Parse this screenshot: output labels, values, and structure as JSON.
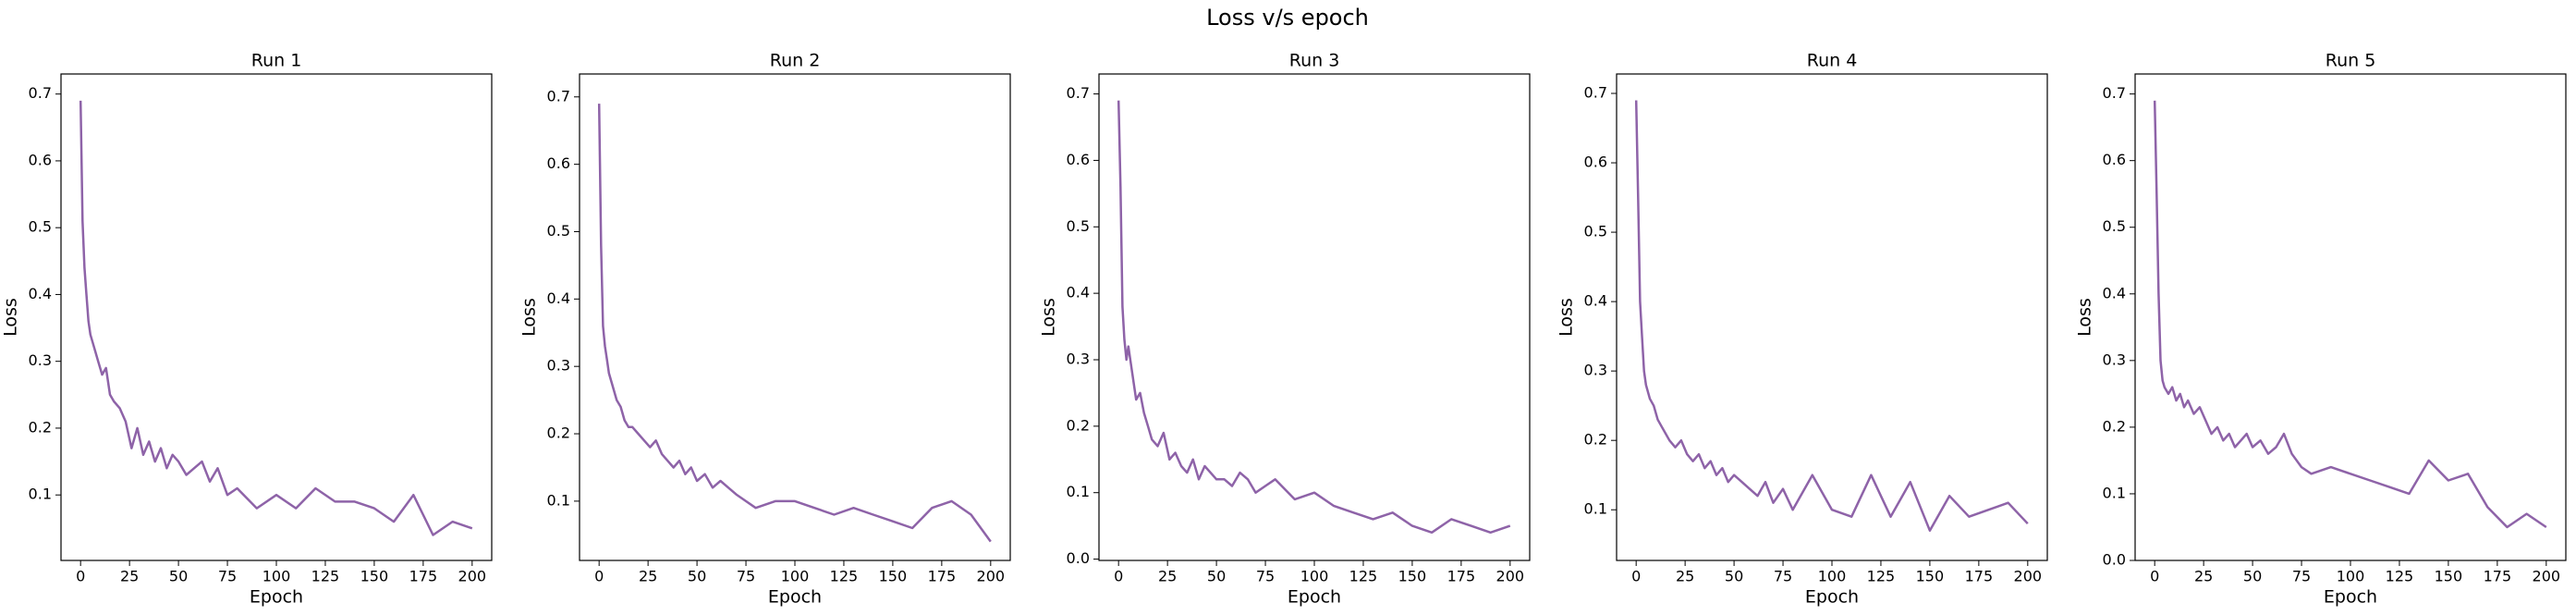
{
  "title": "Loss v/s epoch",
  "chart_data": [
    {
      "type": "line",
      "title": "Run 1",
      "x_label": "Epoch",
      "y_label": "Loss",
      "color": "#8e63a8",
      "x": [
        0,
        1,
        2,
        3,
        4,
        5,
        7,
        9,
        11,
        13,
        15,
        17,
        20,
        23,
        26,
        29,
        32,
        35,
        38,
        41,
        44,
        47,
        50,
        54,
        58,
        62,
        66,
        70,
        75,
        80,
        90,
        100,
        110,
        120,
        130,
        140,
        150,
        160,
        170,
        180,
        190,
        200
      ],
      "values": [
        0.69,
        0.51,
        0.44,
        0.4,
        0.36,
        0.34,
        0.32,
        0.3,
        0.28,
        0.29,
        0.25,
        0.24,
        0.23,
        0.21,
        0.17,
        0.2,
        0.16,
        0.18,
        0.15,
        0.17,
        0.14,
        0.16,
        0.15,
        0.13,
        0.14,
        0.15,
        0.12,
        0.14,
        0.1,
        0.11,
        0.08,
        0.1,
        0.08,
        0.11,
        0.09,
        0.09,
        0.08,
        0.06,
        0.1,
        0.04,
        0.06,
        0.05
      ],
      "xlim": [
        -10,
        210
      ],
      "xticks": [
        0,
        25,
        50,
        75,
        100,
        125,
        150,
        175,
        200
      ],
      "ylim": [
        0.002,
        0.73
      ],
      "yticks": [
        0.1,
        0.2,
        0.3,
        0.4,
        0.5,
        0.6,
        0.7
      ]
    },
    {
      "type": "line",
      "title": "Run 2",
      "x_label": "Epoch",
      "y_label": "Loss",
      "color": "#8e63a8",
      "x": [
        0,
        1,
        2,
        3,
        4,
        5,
        7,
        9,
        11,
        13,
        15,
        17,
        20,
        23,
        26,
        29,
        32,
        35,
        38,
        41,
        44,
        47,
        50,
        54,
        58,
        62,
        66,
        70,
        75,
        80,
        90,
        100,
        110,
        120,
        130,
        140,
        150,
        160,
        170,
        180,
        190,
        200
      ],
      "values": [
        0.69,
        0.48,
        0.36,
        0.33,
        0.31,
        0.29,
        0.27,
        0.25,
        0.24,
        0.22,
        0.21,
        0.21,
        0.2,
        0.19,
        0.18,
        0.19,
        0.17,
        0.16,
        0.15,
        0.16,
        0.14,
        0.15,
        0.13,
        0.14,
        0.12,
        0.13,
        0.12,
        0.11,
        0.1,
        0.09,
        0.1,
        0.1,
        0.09,
        0.08,
        0.09,
        0.08,
        0.07,
        0.06,
        0.09,
        0.1,
        0.08,
        0.04
      ],
      "xlim": [
        -10,
        210
      ],
      "xticks": [
        0,
        25,
        50,
        75,
        100,
        125,
        150,
        175,
        200
      ],
      "ylim": [
        0.012,
        0.734
      ],
      "yticks": [
        0.1,
        0.2,
        0.3,
        0.4,
        0.5,
        0.6,
        0.7
      ]
    },
    {
      "type": "line",
      "title": "Run 3",
      "x_label": "Epoch",
      "y_label": "Loss",
      "color": "#8e63a8",
      "x": [
        0,
        1,
        2,
        3,
        4,
        5,
        7,
        9,
        11,
        13,
        15,
        17,
        20,
        23,
        26,
        29,
        32,
        35,
        38,
        41,
        44,
        47,
        50,
        54,
        58,
        62,
        66,
        70,
        75,
        80,
        90,
        100,
        110,
        120,
        130,
        140,
        150,
        160,
        170,
        180,
        190,
        200
      ],
      "values": [
        0.69,
        0.56,
        0.38,
        0.33,
        0.3,
        0.32,
        0.28,
        0.24,
        0.25,
        0.22,
        0.2,
        0.18,
        0.17,
        0.19,
        0.15,
        0.16,
        0.14,
        0.13,
        0.15,
        0.12,
        0.14,
        0.13,
        0.12,
        0.12,
        0.11,
        0.13,
        0.12,
        0.1,
        0.11,
        0.12,
        0.09,
        0.1,
        0.08,
        0.07,
        0.06,
        0.07,
        0.05,
        0.04,
        0.06,
        0.05,
        0.04,
        0.05
      ],
      "xlim": [
        -10,
        210
      ],
      "xticks": [
        0,
        25,
        50,
        75,
        100,
        125,
        150,
        175,
        200
      ],
      "ylim": [
        -0.002,
        0.73
      ],
      "yticks": [
        {
          "value": 0,
          "label": "0.0"
        },
        0.1,
        0.2,
        0.3,
        0.4,
        0.5,
        0.6,
        0.7
      ]
    },
    {
      "type": "line",
      "title": "Run 4",
      "x_label": "Epoch",
      "y_label": "Loss",
      "color": "#8e63a8",
      "x": [
        0,
        1,
        2,
        3,
        4,
        5,
        7,
        9,
        11,
        13,
        15,
        17,
        20,
        23,
        26,
        29,
        32,
        35,
        38,
        41,
        44,
        47,
        50,
        54,
        58,
        62,
        66,
        70,
        75,
        80,
        90,
        100,
        110,
        120,
        130,
        140,
        150,
        160,
        170,
        180,
        190,
        200
      ],
      "values": [
        0.69,
        0.55,
        0.4,
        0.35,
        0.3,
        0.28,
        0.26,
        0.25,
        0.23,
        0.22,
        0.21,
        0.2,
        0.19,
        0.2,
        0.18,
        0.17,
        0.18,
        0.16,
        0.17,
        0.15,
        0.16,
        0.14,
        0.15,
        0.14,
        0.13,
        0.12,
        0.14,
        0.11,
        0.13,
        0.1,
        0.15,
        0.1,
        0.09,
        0.15,
        0.09,
        0.14,
        0.07,
        0.12,
        0.09,
        0.1,
        0.11,
        0.08
      ],
      "xlim": [
        -10,
        210
      ],
      "xticks": [
        0,
        25,
        50,
        75,
        100,
        125,
        150,
        175,
        200
      ],
      "ylim": [
        0.027,
        0.728
      ],
      "yticks": [
        0.1,
        0.2,
        0.3,
        0.4,
        0.5,
        0.6,
        0.7
      ]
    },
    {
      "type": "line",
      "title": "Run 5",
      "x_label": "Epoch",
      "y_label": "Loss",
      "color": "#8e63a8",
      "x": [
        0,
        1,
        2,
        3,
        4,
        5,
        7,
        9,
        11,
        13,
        15,
        17,
        20,
        23,
        26,
        29,
        32,
        35,
        38,
        41,
        44,
        47,
        50,
        54,
        58,
        62,
        66,
        70,
        75,
        80,
        90,
        100,
        110,
        120,
        130,
        140,
        150,
        160,
        170,
        180,
        190,
        200
      ],
      "values": [
        0.69,
        0.55,
        0.4,
        0.3,
        0.27,
        0.26,
        0.25,
        0.26,
        0.24,
        0.25,
        0.23,
        0.24,
        0.22,
        0.23,
        0.21,
        0.19,
        0.2,
        0.18,
        0.19,
        0.17,
        0.18,
        0.19,
        0.17,
        0.18,
        0.16,
        0.17,
        0.19,
        0.16,
        0.14,
        0.13,
        0.14,
        0.13,
        0.12,
        0.11,
        0.1,
        0.15,
        0.12,
        0.13,
        0.08,
        0.05,
        0.07,
        0.05
      ],
      "xlim": [
        -10,
        210
      ],
      "xticks": [
        0,
        25,
        50,
        75,
        100,
        125,
        150,
        175,
        200
      ],
      "ylim": [
        0,
        0.73
      ],
      "yticks": [
        {
          "value": 0,
          "label": "0.0"
        },
        0.1,
        0.2,
        0.3,
        0.4,
        0.5,
        0.6,
        0.7
      ]
    }
  ]
}
